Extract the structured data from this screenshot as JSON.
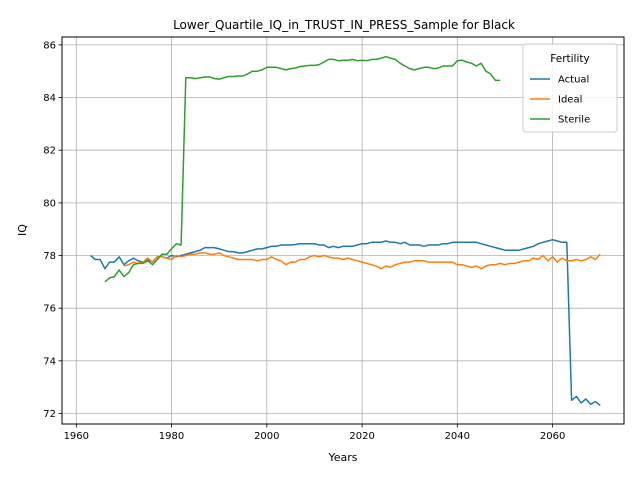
{
  "chart_data": {
    "type": "line",
    "title": "Lower_Quartile_IQ_in_TRUST_IN_PRESS_Sample for Black",
    "xlabel": "Years",
    "ylabel": "IQ",
    "xlim": [
      1957,
      2075
    ],
    "ylim": [
      71.6,
      86.3
    ],
    "xticks": [
      1960,
      1980,
      2000,
      2020,
      2040,
      2060
    ],
    "yticks": [
      72,
      74,
      76,
      78,
      80,
      82,
      84,
      86
    ],
    "grid": true,
    "legend": {
      "title": "Fertility",
      "position": "top-right"
    },
    "series": [
      {
        "name": "Actual",
        "color": "#1f77b4",
        "x": [
          1963,
          1964,
          1965,
          1966,
          1967,
          1968,
          1969,
          1970,
          1971,
          1972,
          1973,
          1974,
          1975,
          1976,
          1977,
          1978,
          1979,
          1980,
          1981,
          1982,
          1983,
          1984,
          1985,
          1986,
          1987,
          1988,
          1989,
          1990,
          1991,
          1992,
          1993,
          1994,
          1995,
          1996,
          1997,
          1998,
          1999,
          2000,
          2001,
          2002,
          2003,
          2004,
          2005,
          2006,
          2007,
          2008,
          2009,
          2010,
          2011,
          2012,
          2013,
          2014,
          2015,
          2016,
          2017,
          2018,
          2019,
          2020,
          2021,
          2022,
          2023,
          2024,
          2025,
          2026,
          2027,
          2028,
          2029,
          2030,
          2031,
          2032,
          2033,
          2034,
          2035,
          2036,
          2037,
          2038,
          2039,
          2040,
          2041,
          2042,
          2043,
          2044,
          2045,
          2046,
          2047,
          2048,
          2049,
          2050,
          2051,
          2052,
          2053,
          2054,
          2055,
          2056,
          2057,
          2058,
          2059,
          2060,
          2061,
          2062,
          2063,
          2064,
          2065,
          2066,
          2067,
          2068,
          2069,
          2070
        ],
        "values": [
          78.0,
          77.85,
          77.85,
          77.5,
          77.75,
          77.75,
          77.95,
          77.65,
          77.8,
          77.9,
          77.8,
          77.75,
          77.85,
          77.75,
          77.95,
          77.95,
          77.9,
          78.0,
          77.95,
          78.0,
          78.05,
          78.1,
          78.15,
          78.2,
          78.3,
          78.3,
          78.3,
          78.25,
          78.2,
          78.15,
          78.15,
          78.1,
          78.1,
          78.15,
          78.2,
          78.25,
          78.25,
          78.3,
          78.35,
          78.35,
          78.4,
          78.4,
          78.4,
          78.42,
          78.45,
          78.45,
          78.45,
          78.45,
          78.4,
          78.4,
          78.3,
          78.35,
          78.3,
          78.35,
          78.35,
          78.35,
          78.4,
          78.45,
          78.45,
          78.5,
          78.5,
          78.5,
          78.55,
          78.5,
          78.5,
          78.45,
          78.5,
          78.4,
          78.4,
          78.4,
          78.35,
          78.4,
          78.4,
          78.4,
          78.45,
          78.45,
          78.5,
          78.5,
          78.5,
          78.5,
          78.5,
          78.5,
          78.45,
          78.4,
          78.35,
          78.3,
          78.25,
          78.2,
          78.2,
          78.2,
          78.2,
          78.25,
          78.3,
          78.35,
          78.45,
          78.5,
          78.55,
          78.6,
          78.55,
          78.5,
          78.5,
          72.5,
          72.65,
          72.4,
          72.55,
          72.35,
          72.45,
          72.3
        ]
      },
      {
        "name": "Ideal",
        "color": "#ff7f0e",
        "x": [
          1970,
          1971,
          1972,
          1973,
          1974,
          1975,
          1976,
          1977,
          1978,
          1979,
          1980,
          1981,
          1982,
          1983,
          1984,
          1985,
          1986,
          1987,
          1988,
          1989,
          1990,
          1991,
          1992,
          1993,
          1994,
          1995,
          1996,
          1997,
          1998,
          1999,
          2000,
          2001,
          2002,
          2003,
          2004,
          2005,
          2006,
          2007,
          2008,
          2009,
          2010,
          2011,
          2012,
          2013,
          2014,
          2015,
          2016,
          2017,
          2018,
          2019,
          2020,
          2021,
          2022,
          2023,
          2024,
          2025,
          2026,
          2027,
          2028,
          2029,
          2030,
          2031,
          2032,
          2033,
          2034,
          2035,
          2036,
          2037,
          2038,
          2039,
          2040,
          2041,
          2042,
          2043,
          2044,
          2045,
          2046,
          2047,
          2048,
          2049,
          2050,
          2051,
          2052,
          2053,
          2054,
          2055,
          2056,
          2057,
          2058,
          2059,
          2060,
          2061,
          2062,
          2063,
          2064,
          2065,
          2066,
          2067,
          2068,
          2069,
          2070
        ],
        "values": [
          77.6,
          77.65,
          77.75,
          77.7,
          77.75,
          77.9,
          77.75,
          77.95,
          77.95,
          77.9,
          77.85,
          78.0,
          77.95,
          78.0,
          78.05,
          78.05,
          78.1,
          78.1,
          78.05,
          78.05,
          78.1,
          78.0,
          77.95,
          77.9,
          77.85,
          77.85,
          77.85,
          77.85,
          77.8,
          77.85,
          77.85,
          77.95,
          77.85,
          77.8,
          77.65,
          77.75,
          77.75,
          77.85,
          77.85,
          77.95,
          78.0,
          77.95,
          78.0,
          77.95,
          77.9,
          77.9,
          77.85,
          77.9,
          77.85,
          77.8,
          77.75,
          77.7,
          77.65,
          77.6,
          77.5,
          77.6,
          77.55,
          77.65,
          77.7,
          77.75,
          77.75,
          77.8,
          77.8,
          77.8,
          77.75,
          77.75,
          77.75,
          77.75,
          77.75,
          77.75,
          77.65,
          77.65,
          77.6,
          77.55,
          77.6,
          77.5,
          77.6,
          77.65,
          77.65,
          77.7,
          77.65,
          77.7,
          77.7,
          77.75,
          77.8,
          77.8,
          77.9,
          77.85,
          78.0,
          77.8,
          77.95,
          77.75,
          77.9,
          77.8,
          77.8,
          77.85,
          77.8,
          77.85,
          77.95,
          77.85,
          78.05
        ]
      },
      {
        "name": "Sterile",
        "color": "#2ca02c",
        "x": [
          1966,
          1967,
          1968,
          1969,
          1970,
          1971,
          1972,
          1973,
          1974,
          1975,
          1976,
          1977,
          1978,
          1979,
          1980,
          1981,
          1982,
          1983,
          1984,
          1985,
          1986,
          1987,
          1988,
          1989,
          1990,
          1991,
          1992,
          1993,
          1994,
          1995,
          1996,
          1997,
          1998,
          1999,
          2000,
          2001,
          2002,
          2003,
          2004,
          2005,
          2006,
          2007,
          2008,
          2009,
          2010,
          2011,
          2012,
          2013,
          2014,
          2015,
          2016,
          2017,
          2018,
          2019,
          2020,
          2021,
          2022,
          2023,
          2024,
          2025,
          2026,
          2027,
          2028,
          2029,
          2030,
          2031,
          2032,
          2033,
          2034,
          2035,
          2036,
          2037,
          2038,
          2039,
          2040,
          2041,
          2042,
          2043,
          2044,
          2045,
          2046,
          2047,
          2048,
          2049
        ],
        "values": [
          77.0,
          77.15,
          77.2,
          77.45,
          77.2,
          77.35,
          77.65,
          77.7,
          77.7,
          77.8,
          77.65,
          77.85,
          78.05,
          78.05,
          78.25,
          78.45,
          78.4,
          84.75,
          84.75,
          84.72,
          84.75,
          84.78,
          84.78,
          84.72,
          84.7,
          84.75,
          84.8,
          84.8,
          84.82,
          84.82,
          84.9,
          85.0,
          85.0,
          85.05,
          85.15,
          85.15,
          85.15,
          85.1,
          85.05,
          85.1,
          85.12,
          85.18,
          85.2,
          85.22,
          85.22,
          85.25,
          85.35,
          85.45,
          85.45,
          85.4,
          85.42,
          85.42,
          85.45,
          85.4,
          85.42,
          85.4,
          85.45,
          85.45,
          85.5,
          85.55,
          85.5,
          85.45,
          85.3,
          85.2,
          85.1,
          85.05,
          85.1,
          85.15,
          85.15,
          85.1,
          85.12,
          85.2,
          85.2,
          85.2,
          85.4,
          85.42,
          85.35,
          85.3,
          85.2,
          85.3,
          85.0,
          84.9,
          84.65,
          84.65
        ]
      }
    ]
  }
}
